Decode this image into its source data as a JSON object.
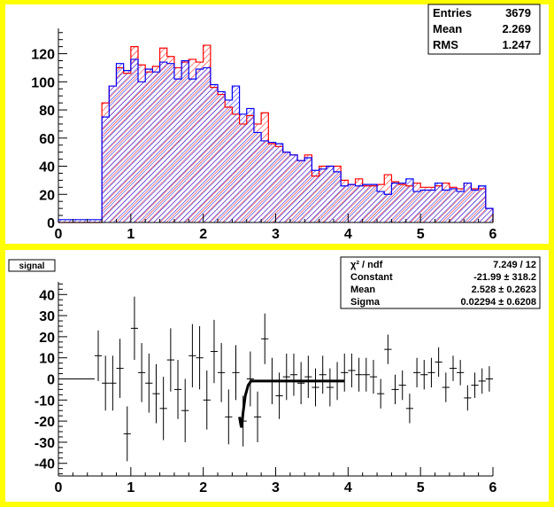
{
  "top_stats": {
    "entries_label": "Entries",
    "entries_value": "3679",
    "mean_label": "Mean",
    "mean_value": "2.269",
    "rms_label": "RMS",
    "rms_value": "1.247"
  },
  "bottom_title": "signal",
  "fit_stats": {
    "chi_label": "χ² / ndf",
    "chi_value": "7.249 / 12",
    "constant_label": "Constant",
    "constant_value": "-21.99 ± 318.2",
    "mean_label": "Mean",
    "mean_value": "2.528 ± 0.2623",
    "sigma_label": "Sigma",
    "sigma_value": "0.02294 ± 0.6208"
  },
  "colors": {
    "frame": "#ffff00",
    "series_red": "#ff0000",
    "series_blue": "#0000ff",
    "fit": "#000000"
  },
  "chart_data": [
    {
      "type": "bar",
      "style": "overlaid step histograms with hatched fill",
      "xlim": [
        0,
        6
      ],
      "ylim": [
        0,
        138
      ],
      "x_ticks": [
        "0",
        "1",
        "2",
        "3",
        "4",
        "5",
        "6"
      ],
      "y_ticks": [
        "0",
        "20",
        "40",
        "60",
        "80",
        "100",
        "120"
      ],
      "bin_width": 0.1,
      "bin_starts": [
        0.0,
        0.1,
        0.2,
        0.3,
        0.4,
        0.5,
        0.6,
        0.7,
        0.8,
        0.9,
        1.0,
        1.1,
        1.2,
        1.3,
        1.4,
        1.5,
        1.6,
        1.7,
        1.8,
        1.9,
        2.0,
        2.1,
        2.2,
        2.3,
        2.4,
        2.5,
        2.6,
        2.7,
        2.8,
        2.9,
        3.0,
        3.1,
        3.2,
        3.3,
        3.4,
        3.5,
        3.6,
        3.7,
        3.8,
        3.9,
        4.0,
        4.1,
        4.2,
        4.3,
        4.4,
        4.5,
        4.6,
        4.7,
        4.8,
        4.9,
        5.0,
        5.1,
        5.2,
        5.3,
        5.4,
        5.5,
        5.6,
        5.7,
        5.8,
        5.9
      ],
      "series": [
        {
          "color": "red",
          "values": [
            0,
            0,
            0,
            0,
            0,
            0,
            85,
            97,
            110,
            106,
            125,
            112,
            107,
            111,
            124,
            118,
            110,
            114,
            116,
            114,
            126,
            96,
            91,
            82,
            77,
            70,
            76,
            70,
            78,
            56,
            54,
            50,
            48,
            44,
            48,
            33,
            40,
            40,
            40,
            30,
            27,
            31,
            26,
            26,
            27,
            34,
            29,
            27,
            26,
            28,
            25,
            25,
            26,
            28,
            25,
            24,
            28,
            24,
            24,
            10
          ]
        },
        {
          "color": "blue",
          "values": [
            2,
            2,
            2,
            2,
            2,
            2,
            75,
            97,
            113,
            108,
            116,
            100,
            109,
            107,
            114,
            113,
            102,
            115,
            102,
            109,
            110,
            98,
            93,
            87,
            97,
            77,
            81,
            64,
            58,
            57,
            56,
            50,
            48,
            44,
            46,
            37,
            38,
            40,
            36,
            26,
            27,
            26,
            27,
            27,
            22,
            20,
            28,
            28,
            31,
            22,
            23,
            23,
            28,
            23,
            24,
            22,
            28,
            23,
            26,
            10
          ]
        }
      ]
    },
    {
      "type": "scatter",
      "style": "points with error bars plus gaussian fit curve",
      "xlim": [
        0,
        6
      ],
      "ylim": [
        -46,
        46
      ],
      "x_ticks": [
        "0",
        "1",
        "2",
        "3",
        "4",
        "5",
        "6"
      ],
      "y_ticks": [
        "-40",
        "-30",
        "-20",
        "-10",
        "0",
        "10",
        "20",
        "30",
        "40"
      ],
      "points": [
        {
          "x": 0.25,
          "y": 0,
          "ey": 0,
          "ex": 0.25
        },
        {
          "x": 0.55,
          "y": 11,
          "ey": 12
        },
        {
          "x": 0.65,
          "y": -2,
          "ey": 13
        },
        {
          "x": 0.75,
          "y": -2,
          "ey": 13
        },
        {
          "x": 0.85,
          "y": 5,
          "ey": 14
        },
        {
          "x": 0.95,
          "y": -26,
          "ey": 13
        },
        {
          "x": 1.05,
          "y": 24,
          "ey": 15
        },
        {
          "x": 1.15,
          "y": 3,
          "ey": 14
        },
        {
          "x": 1.25,
          "y": -2,
          "ey": 14
        },
        {
          "x": 1.35,
          "y": -7,
          "ey": 14
        },
        {
          "x": 1.45,
          "y": -14,
          "ey": 15
        },
        {
          "x": 1.55,
          "y": 9,
          "ey": 15
        },
        {
          "x": 1.65,
          "y": -5,
          "ey": 14
        },
        {
          "x": 1.75,
          "y": -15,
          "ey": 15
        },
        {
          "x": 1.85,
          "y": 11,
          "ey": 15
        },
        {
          "x": 1.95,
          "y": 10,
          "ey": 15
        },
        {
          "x": 2.05,
          "y": -10,
          "ey": 14
        },
        {
          "x": 2.15,
          "y": 13,
          "ey": 15
        },
        {
          "x": 2.25,
          "y": 3,
          "ey": 14
        },
        {
          "x": 2.35,
          "y": -18,
          "ey": 13
        },
        {
          "x": 2.45,
          "y": 3,
          "ey": 13
        },
        {
          "x": 2.55,
          "y": -20,
          "ey": 12
        },
        {
          "x": 2.65,
          "y": 0,
          "ey": 13
        },
        {
          "x": 2.75,
          "y": -18,
          "ey": 12
        },
        {
          "x": 2.85,
          "y": 19,
          "ey": 12
        },
        {
          "x": 2.95,
          "y": -1,
          "ey": 11
        },
        {
          "x": 3.05,
          "y": -8,
          "ey": 11
        },
        {
          "x": 3.15,
          "y": 1,
          "ey": 11
        },
        {
          "x": 3.25,
          "y": 2,
          "ey": 10
        },
        {
          "x": 3.35,
          "y": -2,
          "ey": 10
        },
        {
          "x": 3.45,
          "y": 1,
          "ey": 10
        },
        {
          "x": 3.55,
          "y": -4,
          "ey": 9
        },
        {
          "x": 3.65,
          "y": 2,
          "ey": 9
        },
        {
          "x": 3.75,
          "y": -4,
          "ey": 9
        },
        {
          "x": 3.85,
          "y": -1,
          "ey": 9
        },
        {
          "x": 3.95,
          "y": 3,
          "ey": 9
        },
        {
          "x": 4.05,
          "y": 4,
          "ey": 8
        },
        {
          "x": 4.15,
          "y": 2,
          "ey": 8
        },
        {
          "x": 4.25,
          "y": 2,
          "ey": 8
        },
        {
          "x": 4.35,
          "y": 1,
          "ey": 8
        },
        {
          "x": 4.45,
          "y": -7,
          "ey": 7
        },
        {
          "x": 4.55,
          "y": 14,
          "ey": 7
        },
        {
          "x": 4.65,
          "y": -5,
          "ey": 7
        },
        {
          "x": 4.75,
          "y": -3,
          "ey": 7
        },
        {
          "x": 4.85,
          "y": -14,
          "ey": 7
        },
        {
          "x": 4.95,
          "y": 3,
          "ey": 7
        },
        {
          "x": 5.05,
          "y": 2,
          "ey": 7
        },
        {
          "x": 5.15,
          "y": 3,
          "ey": 7
        },
        {
          "x": 5.25,
          "y": 8,
          "ey": 7
        },
        {
          "x": 5.35,
          "y": -4,
          "ey": 7
        },
        {
          "x": 5.45,
          "y": 5,
          "ey": 6
        },
        {
          "x": 5.55,
          "y": 3,
          "ey": 6
        },
        {
          "x": 5.65,
          "y": -9,
          "ey": 6
        },
        {
          "x": 5.75,
          "y": -3,
          "ey": 6
        },
        {
          "x": 5.85,
          "y": -1,
          "ey": 6
        },
        {
          "x": 5.95,
          "y": 0,
          "ey": 6
        }
      ],
      "fit_curve": [
        {
          "x": 2.5,
          "y": -18
        },
        {
          "x": 2.52,
          "y": -22
        },
        {
          "x": 2.53,
          "y": -23
        },
        {
          "x": 2.55,
          "y": -16
        },
        {
          "x": 2.58,
          "y": -8
        },
        {
          "x": 2.62,
          "y": -3
        },
        {
          "x": 2.66,
          "y": -1
        },
        {
          "x": 2.7,
          "y": -1
        },
        {
          "x": 3.95,
          "y": -1
        }
      ]
    }
  ]
}
